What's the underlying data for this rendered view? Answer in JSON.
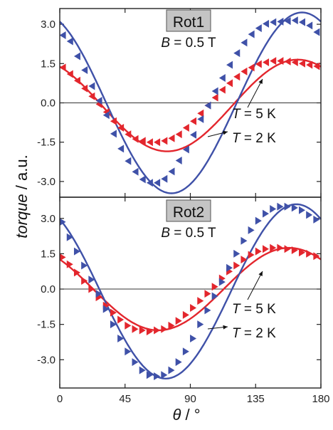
{
  "colors": {
    "blue": "#3f51a8",
    "red": "#e3262d",
    "frame": "#222222",
    "tag_bg": "#c4c4c4"
  },
  "axes": {
    "xlabel_var": "θ",
    "xlabel_unit": " / °",
    "ylabel_var": "torque",
    "ylabel_unit": " / a.u."
  },
  "chart_data": [
    {
      "type": "scatter",
      "panel_label": "Rot1",
      "field_var": "B",
      "field_text": " = 0.5 T",
      "xlim": [
        0,
        180
      ],
      "ylim": [
        -3.6,
        3.6
      ],
      "xticks": [
        0,
        45,
        90,
        135,
        180
      ],
      "yticks": [
        3.0,
        1.5,
        0.0,
        -1.5,
        -3.0
      ],
      "ytick_labels": [
        "3.0",
        "1.5",
        "0.0",
        "-1.5",
        "-3.0"
      ],
      "annotations": [
        {
          "var": "T",
          "text": " = 5 K"
        },
        {
          "var": "T",
          "text": " = 2 K"
        }
      ],
      "series": [
        {
          "color": "blue",
          "marker": "triangle-left",
          "points": [
            [
              2,
              2.58
            ],
            [
              7,
              2.35
            ],
            [
              12,
              1.78
            ],
            [
              17,
              1.25
            ],
            [
              22,
              0.64
            ],
            [
              27,
              0.08
            ],
            [
              32,
              -0.47
            ],
            [
              37,
              -1.18
            ],
            [
              42,
              -1.75
            ],
            [
              47,
              -2.22
            ],
            [
              52,
              -2.63
            ],
            [
              57,
              -2.92
            ],
            [
              62,
              -3.05
            ],
            [
              67,
              -3.05
            ],
            [
              72,
              -2.9
            ],
            [
              77,
              -2.62
            ],
            [
              82,
              -2.2
            ],
            [
              87,
              -1.78
            ],
            [
              92,
              -1.22
            ],
            [
              97,
              -0.62
            ],
            [
              102,
              -0.1
            ],
            [
              107,
              0.45
            ],
            [
              112,
              0.95
            ],
            [
              117,
              1.45
            ],
            [
              122,
              1.9
            ],
            [
              127,
              2.3
            ],
            [
              132,
              2.62
            ],
            [
              137,
              2.85
            ],
            [
              142,
              3.02
            ],
            [
              147,
              3.08
            ],
            [
              152,
              3.1
            ],
            [
              157,
              3.12
            ],
            [
              162,
              3.15
            ],
            [
              167,
              3.08
            ],
            [
              172,
              2.95
            ],
            [
              177,
              2.7
            ]
          ],
          "fit": {
            "amp": 3.45,
            "offset": 0.0,
            "peak_x": 167
          }
        },
        {
          "color": "red",
          "marker": "triangle-left",
          "points": [
            [
              2,
              1.35
            ],
            [
              7,
              1.1
            ],
            [
              12,
              0.85
            ],
            [
              17,
              0.55
            ],
            [
              22,
              0.25
            ],
            [
              27,
              -0.05
            ],
            [
              32,
              -0.35
            ],
            [
              37,
              -0.7
            ],
            [
              42,
              -0.95
            ],
            [
              47,
              -1.2
            ],
            [
              52,
              -1.38
            ],
            [
              57,
              -1.45
            ],
            [
              62,
              -1.5
            ],
            [
              67,
              -1.5
            ],
            [
              72,
              -1.45
            ],
            [
              77,
              -1.35
            ],
            [
              82,
              -1.2
            ],
            [
              87,
              -0.95
            ],
            [
              92,
              -0.7
            ],
            [
              97,
              -0.4
            ],
            [
              102,
              -0.1
            ],
            [
              107,
              0.2
            ],
            [
              112,
              0.5
            ],
            [
              117,
              0.75
            ],
            [
              122,
              1.0
            ],
            [
              127,
              1.2
            ],
            [
              132,
              1.35
            ],
            [
              137,
              1.48
            ],
            [
              142,
              1.55
            ],
            [
              147,
              1.6
            ],
            [
              152,
              1.6
            ],
            [
              157,
              1.58
            ],
            [
              162,
              1.55
            ],
            [
              167,
              1.5
            ],
            [
              172,
              1.45
            ],
            [
              177,
              1.4
            ]
          ],
          "fit": {
            "amp": 1.75,
            "offset": -0.1,
            "peak_x": 164
          }
        }
      ]
    },
    {
      "type": "scatter",
      "panel_label": "Rot2",
      "field_var": "B",
      "field_text": " = 0.5 T",
      "xlim": [
        0,
        180
      ],
      "ylim": [
        -4.2,
        3.9
      ],
      "xticks": [
        0,
        45,
        90,
        135,
        180
      ],
      "yticks": [
        3.0,
        1.5,
        0.0,
        -1.5,
        -3.0
      ],
      "ytick_labels": [
        "3.0",
        "1.5",
        "0.0",
        "-1.5",
        "-3.0"
      ],
      "annotations": [
        {
          "var": "T",
          "text": " = 5 K"
        },
        {
          "var": "T",
          "text": " = 2 K"
        }
      ],
      "series": [
        {
          "color": "blue",
          "marker": "triangle-right",
          "points": [
            [
              2,
              2.85
            ],
            [
              7,
              2.2
            ],
            [
              12,
              1.6
            ],
            [
              17,
              1.0
            ],
            [
              22,
              0.4
            ],
            [
              27,
              -0.2
            ],
            [
              32,
              -0.85
            ],
            [
              37,
              -1.5
            ],
            [
              42,
              -2.1
            ],
            [
              47,
              -2.65
            ],
            [
              52,
              -3.1
            ],
            [
              57,
              -3.45
            ],
            [
              62,
              -3.65
            ],
            [
              67,
              -3.7
            ],
            [
              72,
              -3.65
            ],
            [
              77,
              -3.45
            ],
            [
              82,
              -3.1
            ],
            [
              87,
              -2.65
            ],
            [
              92,
              -2.1
            ],
            [
              97,
              -1.5
            ],
            [
              102,
              -0.9
            ],
            [
              107,
              -0.3
            ],
            [
              112,
              0.3
            ],
            [
              117,
              0.9
            ],
            [
              122,
              1.5
            ],
            [
              127,
              2.05
            ],
            [
              132,
              2.5
            ],
            [
              137,
              2.9
            ],
            [
              142,
              3.2
            ],
            [
              147,
              3.4
            ],
            [
              152,
              3.5
            ],
            [
              157,
              3.5
            ],
            [
              162,
              3.45
            ],
            [
              167,
              3.35
            ],
            [
              172,
              3.15
            ],
            [
              177,
              2.95
            ]
          ],
          "fit": {
            "amp": 3.7,
            "offset": -0.1,
            "peak_x": 163
          }
        },
        {
          "color": "red",
          "marker": "triangle-right",
          "points": [
            [
              2,
              1.35
            ],
            [
              7,
              1.05
            ],
            [
              12,
              0.7
            ],
            [
              17,
              0.35
            ],
            [
              22,
              0.0
            ],
            [
              27,
              -0.35
            ],
            [
              32,
              -0.7
            ],
            [
              37,
              -1.0
            ],
            [
              42,
              -1.3
            ],
            [
              47,
              -1.55
            ],
            [
              52,
              -1.7
            ],
            [
              57,
              -1.75
            ],
            [
              62,
              -1.8
            ],
            [
              67,
              -1.75
            ],
            [
              72,
              -1.7
            ],
            [
              77,
              -1.55
            ],
            [
              82,
              -1.35
            ],
            [
              87,
              -1.1
            ],
            [
              92,
              -0.8
            ],
            [
              97,
              -0.5
            ],
            [
              102,
              -0.2
            ],
            [
              107,
              0.1
            ],
            [
              112,
              0.45
            ],
            [
              117,
              0.75
            ],
            [
              122,
              1.0
            ],
            [
              127,
              1.25
            ],
            [
              132,
              1.45
            ],
            [
              137,
              1.6
            ],
            [
              142,
              1.7
            ],
            [
              147,
              1.75
            ],
            [
              152,
              1.75
            ],
            [
              157,
              1.7
            ],
            [
              162,
              1.65
            ],
            [
              167,
              1.55
            ],
            [
              172,
              1.5
            ],
            [
              177,
              1.4
            ]
          ],
          "fit": {
            "amp": 1.75,
            "offset": 0.0,
            "peak_x": 158
          }
        }
      ]
    }
  ]
}
